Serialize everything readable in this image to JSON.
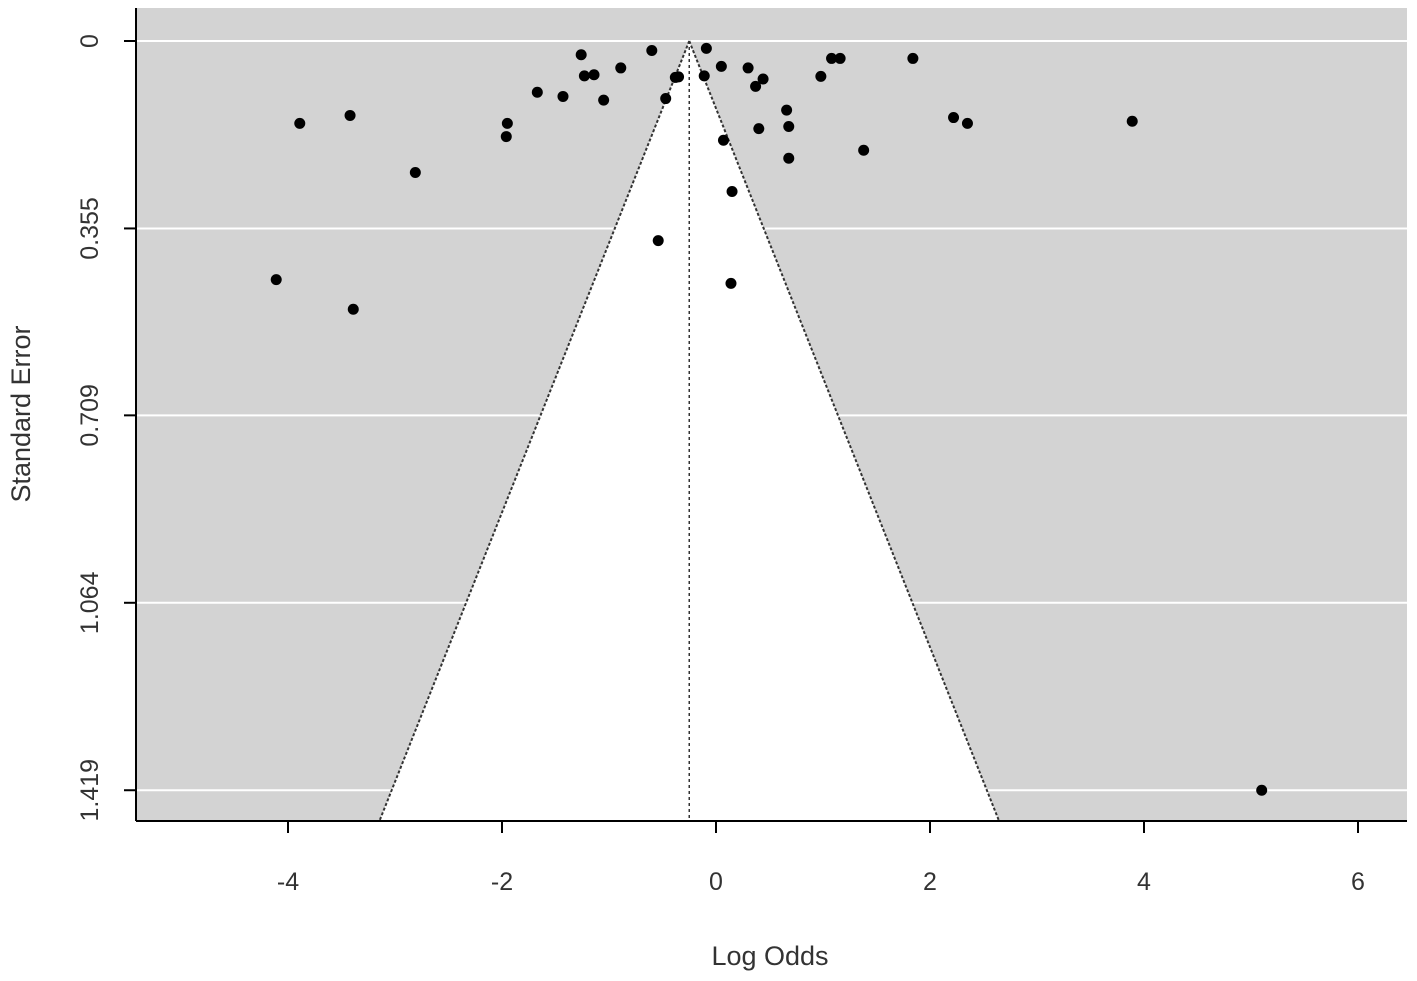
{
  "chart_data": {
    "type": "scatter",
    "subtype": "funnel-plot",
    "title": "",
    "xlabel": "Log Odds",
    "ylabel": "Standard Error",
    "xlim": [
      -5.35,
      6.6
    ],
    "ylim": [
      0,
      1.479
    ],
    "y_reversed": true,
    "x_ticks": [
      -4,
      -2,
      0,
      2,
      4,
      6
    ],
    "x_tick_labels": [
      "-4",
      "-2",
      "0",
      "2",
      "4",
      "6"
    ],
    "y_ticks": [
      0,
      0.355,
      0.709,
      1.064,
      1.419
    ],
    "y_tick_labels": [
      "0",
      "0.355",
      "0.709",
      "1.064",
      "1.419"
    ],
    "grid": "horizontal",
    "legend": "none",
    "summary_estimate": -0.25,
    "ci_multiplier": 1.96,
    "colors": {
      "plot_background": "#d3d3d3",
      "funnel_region": "#ffffff",
      "gridline": "#ffffff",
      "points": "#000000",
      "funnel_lines": "#333333",
      "axis": "#000000",
      "text": "#333333"
    },
    "points": [
      {
        "x": -4.11,
        "y": 0.452
      },
      {
        "x": -3.89,
        "y": 0.156
      },
      {
        "x": -3.42,
        "y": 0.141
      },
      {
        "x": -3.39,
        "y": 0.508
      },
      {
        "x": -2.81,
        "y": 0.249
      },
      {
        "x": -1.95,
        "y": 0.156
      },
      {
        "x": -1.96,
        "y": 0.181
      },
      {
        "x": -1.67,
        "y": 0.097
      },
      {
        "x": -1.43,
        "y": 0.105
      },
      {
        "x": -1.26,
        "y": 0.026
      },
      {
        "x": -1.23,
        "y": 0.066
      },
      {
        "x": -1.14,
        "y": 0.064
      },
      {
        "x": -1.05,
        "y": 0.112
      },
      {
        "x": -0.89,
        "y": 0.051
      },
      {
        "x": -0.6,
        "y": 0.018
      },
      {
        "x": -0.54,
        "y": 0.378
      },
      {
        "x": -0.47,
        "y": 0.109
      },
      {
        "x": -0.38,
        "y": 0.069
      },
      {
        "x": -0.35,
        "y": 0.068
      },
      {
        "x": -0.11,
        "y": 0.066
      },
      {
        "x": -0.09,
        "y": 0.014
      },
      {
        "x": 0.05,
        "y": 0.048
      },
      {
        "x": 0.07,
        "y": 0.188
      },
      {
        "x": 0.14,
        "y": 0.459
      },
      {
        "x": 0.15,
        "y": 0.285
      },
      {
        "x": 0.3,
        "y": 0.051
      },
      {
        "x": 0.37,
        "y": 0.086
      },
      {
        "x": 0.4,
        "y": 0.166
      },
      {
        "x": 0.44,
        "y": 0.072
      },
      {
        "x": 0.66,
        "y": 0.131
      },
      {
        "x": 0.68,
        "y": 0.162
      },
      {
        "x": 0.68,
        "y": 0.222
      },
      {
        "x": 0.98,
        "y": 0.067
      },
      {
        "x": 1.08,
        "y": 0.033
      },
      {
        "x": 1.16,
        "y": 0.033
      },
      {
        "x": 1.38,
        "y": 0.207
      },
      {
        "x": 1.84,
        "y": 0.033
      },
      {
        "x": 2.22,
        "y": 0.145
      },
      {
        "x": 2.35,
        "y": 0.156
      },
      {
        "x": 3.89,
        "y": 0.152
      },
      {
        "x": 5.1,
        "y": 1.419
      }
    ]
  }
}
